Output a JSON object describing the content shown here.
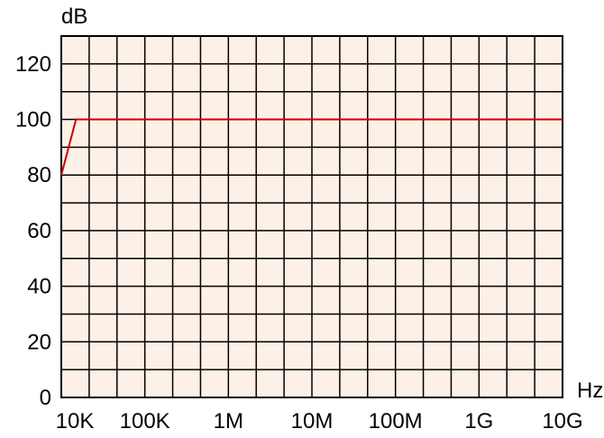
{
  "chart_data": {
    "type": "line",
    "title": "",
    "xlabel": "Hz",
    "ylabel": "dB",
    "x_scale": "log",
    "xlim": [
      10000,
      10000000000
    ],
    "ylim": [
      0,
      130
    ],
    "x_ticks": [
      {
        "value": 10000,
        "label": "10K"
      },
      {
        "value": 100000,
        "label": "100K"
      },
      {
        "value": 1000000,
        "label": "1M"
      },
      {
        "value": 10000000,
        "label": "10M"
      },
      {
        "value": 100000000,
        "label": "100M"
      },
      {
        "value": 1000000000,
        "label": "1G"
      },
      {
        "value": 10000000000,
        "label": "10G"
      }
    ],
    "y_ticks": [
      {
        "value": 0,
        "label": "0"
      },
      {
        "value": 20,
        "label": "20"
      },
      {
        "value": 40,
        "label": "40"
      },
      {
        "value": 60,
        "label": "60"
      },
      {
        "value": 80,
        "label": "80"
      },
      {
        "value": 100,
        "label": "100"
      },
      {
        "value": 120,
        "label": "120"
      }
    ],
    "grid": true,
    "grid_divisions": {
      "x_per_decade": 3,
      "y_per_20": 2
    },
    "series": [
      {
        "color": "#cc0000",
        "points": [
          {
            "x": 10000,
            "y": 80
          },
          {
            "x": 15000,
            "y": 100
          },
          {
            "x": 10000000000,
            "y": 100
          }
        ]
      }
    ],
    "colors": {
      "plot_background": "#fdf0e6",
      "grid": "#000000",
      "series": "#cc0000"
    }
  }
}
